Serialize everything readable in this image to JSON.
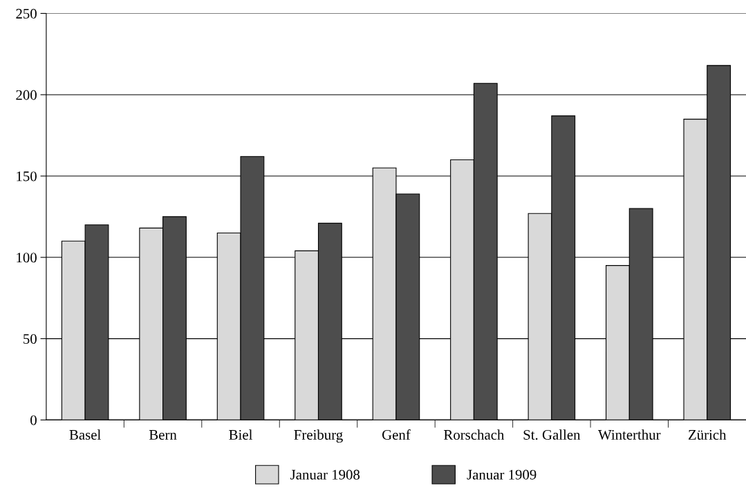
{
  "chart_data": {
    "type": "bar",
    "categories": [
      "Basel",
      "Bern",
      "Biel",
      "Freiburg",
      "Genf",
      "Rorschach",
      "St. Gallen",
      "Winterthur",
      "Zürich"
    ],
    "series": [
      {
        "name": "Januar 1908",
        "color": "#d9d9d9",
        "values": [
          110,
          118,
          115,
          104,
          155,
          160,
          127,
          95,
          185
        ]
      },
      {
        "name": "Januar 1909",
        "color": "#4d4d4d",
        "values": [
          120,
          125,
          162,
          121,
          139,
          207,
          187,
          130,
          218
        ]
      }
    ],
    "ylim": [
      0,
      250
    ],
    "yticks": [
      0,
      50,
      100,
      150,
      200,
      250
    ],
    "grid": "y",
    "legend": "bottom"
  }
}
